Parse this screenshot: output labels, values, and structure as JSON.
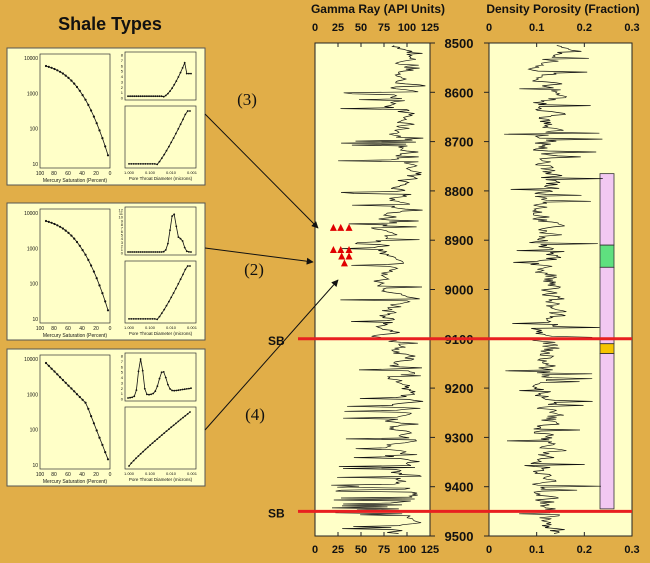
{
  "chart_data": [
    {
      "type": "line",
      "title": "Shale Types",
      "panels": [
        {
          "label": "(3)",
          "left_plot": {
            "xlabel": "Mercury Saturation (Percent)",
            "x_ticks": [
              "100",
              "80",
              "60",
              "40",
              "20",
              "0"
            ],
            "y_ticks": [
              "10000",
              "1000",
              "100",
              "10"
            ]
          },
          "right_top_plot": {
            "y_ticks": [
              "8",
              "7",
              "6",
              "5",
              "4",
              "3",
              "2",
              "1",
              "0"
            ]
          },
          "right_bottom_plot": {
            "xlabel": "Pore Throat Diameter (microns)",
            "x_ticks": [
              "1.000",
              "0.100",
              "0.010",
              "0.001"
            ]
          }
        },
        {
          "label": "(2)",
          "left_plot": {
            "xlabel": "Mercury Saturation (Percent)",
            "x_ticks": [
              "100",
              "80",
              "60",
              "40",
              "20",
              "0"
            ],
            "y_ticks": [
              "10000",
              "1000",
              "100",
              "10"
            ]
          },
          "right_top_plot": {
            "y_ticks": [
              "12",
              "11",
              "10",
              "9",
              "8",
              "7",
              "6",
              "5",
              "4",
              "3",
              "2",
              "1",
              "0"
            ]
          },
          "right_bottom_plot": {
            "xlabel": "Pore Throat Diameter (microns)",
            "x_ticks": [
              "1.000",
              "0.100",
              "0.010",
              "0.001"
            ]
          }
        },
        {
          "label": "(4)",
          "left_plot": {
            "xlabel": "Mercury Saturation (Percent)",
            "x_ticks": [
              "100",
              "80",
              "60",
              "40",
              "20",
              "0"
            ],
            "y_ticks": [
              "10000",
              "1000",
              "100",
              "10"
            ]
          },
          "right_top_plot": {
            "y_ticks": [
              "8",
              "7",
              "6",
              "5",
              "4",
              "3",
              "2",
              "1",
              "0"
            ]
          },
          "right_bottom_plot": {
            "xlabel": "Pore Throat Diameter (microns)",
            "x_ticks": [
              "1.000",
              "0.100",
              "0.010",
              "0.001"
            ]
          }
        }
      ]
    },
    {
      "type": "line",
      "title": "Gamma Ray (API Units)",
      "x_ticks": [
        "0",
        "25",
        "50",
        "75",
        "100",
        "125"
      ],
      "xlim": [
        0,
        125
      ],
      "depth_ticks": [
        "8500",
        "8600",
        "8700",
        "8800",
        "8900",
        "9000",
        "9100",
        "9200",
        "9300",
        "9400",
        "9500"
      ],
      "ylim": [
        9500,
        8500
      ],
      "sample_markers": [
        {
          "x": 20,
          "y": 8875
        },
        {
          "x": 28,
          "y": 8875
        },
        {
          "x": 37,
          "y": 8875
        },
        {
          "x": 20,
          "y": 8920
        },
        {
          "x": 28,
          "y": 8920
        },
        {
          "x": 37,
          "y": 8920
        },
        {
          "x": 29,
          "y": 8933
        },
        {
          "x": 37,
          "y": 8933
        },
        {
          "x": 32,
          "y": 8947
        }
      ],
      "boundaries": [
        {
          "label": "SB",
          "depth": 9100
        },
        {
          "label": "SB",
          "depth": 9450
        }
      ]
    },
    {
      "type": "line",
      "title": "Density Porosity (Fraction)",
      "x_ticks": [
        "0",
        "0.1",
        "0.2",
        "0.3"
      ],
      "xlim": [
        0,
        0.3
      ],
      "depth_ticks": [
        "8500",
        "8600",
        "8700",
        "8800",
        "8900",
        "9000",
        "9100",
        "9200",
        "9300",
        "9400",
        "9500"
      ],
      "ylim": [
        9500,
        8500
      ],
      "zones": [
        {
          "top": 8765,
          "bottom": 8910,
          "color": "#F2C8F2"
        },
        {
          "top": 8910,
          "bottom": 8955,
          "color": "#5FE07F"
        },
        {
          "top": 8955,
          "bottom": 9110,
          "color": "#F2C8F2"
        },
        {
          "top": 9110,
          "bottom": 9130,
          "color": "#F5C400"
        },
        {
          "top": 9130,
          "bottom": 9445,
          "color": "#F2C8F2"
        }
      ]
    }
  ]
}
